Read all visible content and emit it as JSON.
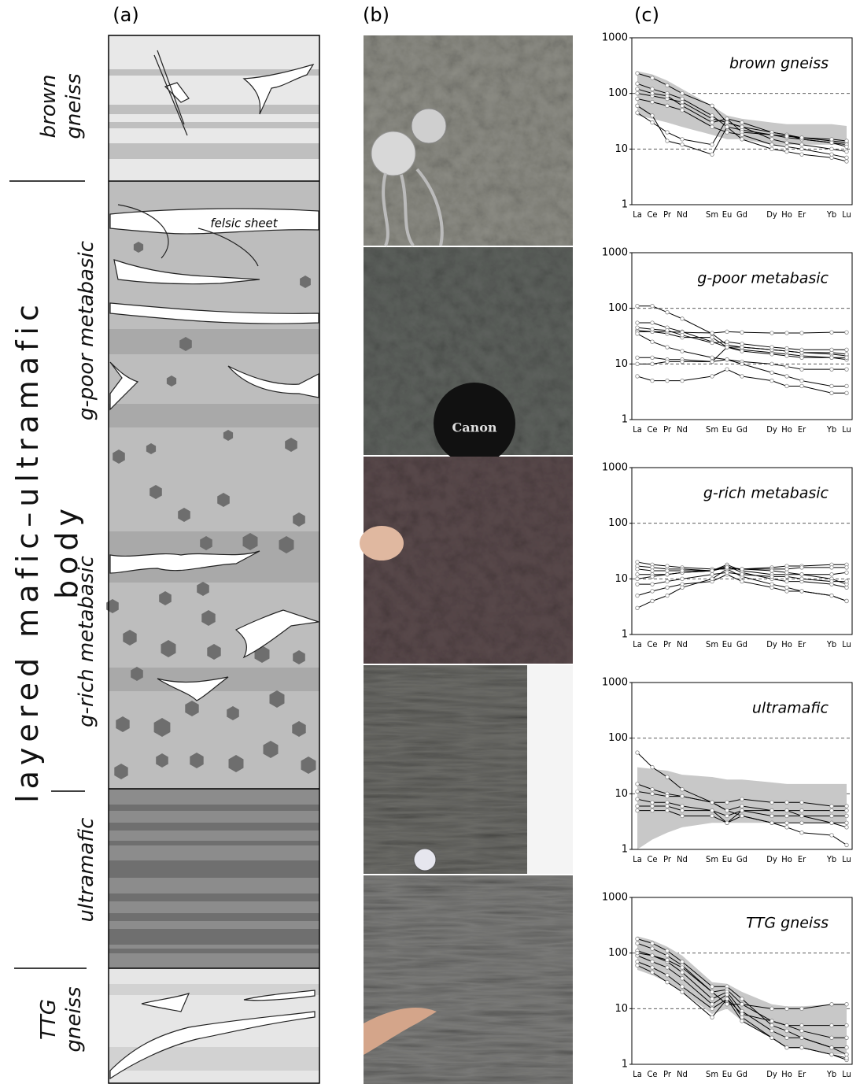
{
  "panel_labels": [
    "(a)",
    "(b)",
    "(c)"
  ],
  "column_a": {
    "body_label": "layered mafic–ultramafic body",
    "units": [
      "brown gneiss",
      "g-poor metabasic",
      "g-rich metabasic",
      "ultramafic",
      "TTG gneiss"
    ],
    "annotation": "felsic sheet"
  },
  "column_b": {
    "photo_text": "Canon"
  },
  "chart_data": [
    {
      "type": "line",
      "title": "brown gneiss",
      "log_y": true,
      "grid": true,
      "categories": [
        "La",
        "Ce",
        "Pr",
        "Nd",
        "Sm",
        "Eu",
        "Gd",
        "Dy",
        "Ho",
        "Er",
        "Yb",
        "Lu"
      ],
      "ylim": [
        1,
        1000
      ],
      "yticks": [
        1,
        10,
        100,
        1000
      ],
      "band": {
        "color": "#c8c8c8",
        "lower": [
          40,
          35,
          30,
          25,
          18,
          15,
          15,
          12,
          12,
          12,
          12,
          12
        ],
        "upper": [
          250,
          220,
          170,
          120,
          60,
          40,
          35,
          30,
          28,
          28,
          28,
          26
        ]
      },
      "series": [
        {
          "color": "#000000",
          "values": [
            230,
            190,
            140,
            100,
            60,
            30,
            25,
            20,
            18,
            16,
            14,
            13
          ]
        },
        {
          "color": "#000000",
          "values": [
            150,
            120,
            100,
            80,
            40,
            25,
            22,
            18,
            16,
            15,
            13,
            12
          ]
        },
        {
          "color": "#000000",
          "values": [
            100,
            90,
            80,
            70,
            35,
            30,
            25,
            15,
            13,
            12,
            10,
            9
          ]
        },
        {
          "color": "#000000",
          "values": [
            120,
            100,
            90,
            60,
            30,
            35,
            30,
            20,
            18,
            15,
            13,
            11
          ]
        },
        {
          "color": "#000000",
          "values": [
            45,
            30,
            20,
            15,
            12,
            35,
            20,
            18,
            17,
            16,
            15,
            14
          ]
        },
        {
          "color": "#000000",
          "values": [
            60,
            40,
            14,
            12,
            8,
            25,
            15,
            10,
            9,
            8,
            7,
            6
          ]
        },
        {
          "color": "#000000",
          "values": [
            80,
            70,
            60,
            50,
            25,
            20,
            18,
            12,
            11,
            10,
            8,
            7
          ]
        }
      ]
    },
    {
      "type": "line",
      "title": "g-poor metabasic",
      "log_y": true,
      "grid": true,
      "categories": [
        "La",
        "Ce",
        "Pr",
        "Nd",
        "Sm",
        "Eu",
        "Gd",
        "Dy",
        "Ho",
        "Er",
        "Yb",
        "Lu"
      ],
      "ylim": [
        1,
        1000
      ],
      "yticks": [
        1,
        10,
        100,
        1000
      ],
      "series": [
        {
          "color": "#000000",
          "values": [
            110,
            110,
            85,
            65,
            35,
            22,
            20,
            18,
            17,
            16,
            15,
            14
          ]
        },
        {
          "color": "#000000",
          "values": [
            55,
            55,
            45,
            38,
            25,
            20,
            18,
            16,
            15,
            14,
            13,
            12
          ]
        },
        {
          "color": "#000000",
          "values": [
            40,
            38,
            35,
            30,
            30,
            20,
            20,
            18,
            17,
            16,
            16,
            15
          ]
        },
        {
          "color": "#000000",
          "values": [
            38,
            38,
            38,
            37,
            36,
            38,
            37,
            36,
            36,
            36,
            37,
            37
          ]
        },
        {
          "color": "#000000",
          "values": [
            13,
            13,
            12,
            12,
            11,
            12,
            11,
            10,
            9,
            8,
            8,
            8
          ]
        },
        {
          "color": "#000000",
          "values": [
            6,
            5,
            5,
            5,
            6,
            8,
            6,
            5,
            4,
            4,
            3,
            3
          ]
        },
        {
          "color": "#000000",
          "values": [
            10,
            10,
            11,
            11,
            11,
            20,
            17,
            15,
            14,
            13,
            13,
            13
          ]
        },
        {
          "color": "#000000",
          "values": [
            35,
            25,
            20,
            17,
            13,
            12,
            10,
            7,
            6,
            5,
            4,
            4
          ]
        },
        {
          "color": "#000000",
          "values": [
            45,
            42,
            40,
            33,
            24,
            25,
            23,
            20,
            19,
            18,
            18,
            18
          ]
        }
      ]
    },
    {
      "type": "line",
      "title": "g-rich metabasic",
      "log_y": true,
      "grid": true,
      "categories": [
        "La",
        "Ce",
        "Pr",
        "Nd",
        "Sm",
        "Eu",
        "Gd",
        "Dy",
        "Ho",
        "Er",
        "Yb",
        "Lu"
      ],
      "ylim": [
        1,
        1000
      ],
      "yticks": [
        1,
        10,
        100,
        1000
      ],
      "series": [
        {
          "color": "#000000",
          "values": [
            20,
            18,
            17,
            16,
            15,
            15,
            15,
            16,
            17,
            17,
            18,
            18
          ]
        },
        {
          "color": "#000000",
          "values": [
            17,
            16,
            15,
            15,
            14,
            16,
            15,
            15,
            15,
            16,
            16,
            16
          ]
        },
        {
          "color": "#000000",
          "values": [
            12,
            12,
            12,
            13,
            14,
            18,
            14,
            12,
            12,
            12,
            12,
            13
          ]
        },
        {
          "color": "#000000",
          "values": [
            10,
            11,
            12,
            13,
            14,
            17,
            13,
            10,
            9,
            9,
            8,
            7
          ]
        },
        {
          "color": "#000000",
          "values": [
            5,
            6,
            7,
            8,
            9,
            12,
            9,
            7,
            6,
            6,
            5,
            4
          ]
        },
        {
          "color": "#000000",
          "values": [
            3,
            4,
            5,
            7,
            10,
            15,
            11,
            8,
            7,
            6,
            5,
            4
          ]
        },
        {
          "color": "#000000",
          "values": [
            15,
            14,
            14,
            14,
            14,
            16,
            15,
            14,
            13,
            12,
            10,
            8
          ]
        },
        {
          "color": "#000000",
          "values": [
            8,
            8,
            9,
            10,
            12,
            13,
            12,
            11,
            11,
            10,
            9,
            9
          ]
        }
      ]
    },
    {
      "type": "line",
      "title": "ultramafic",
      "log_y": true,
      "grid": true,
      "categories": [
        "La",
        "Ce",
        "Pr",
        "Nd",
        "Sm",
        "Eu",
        "Gd",
        "Dy",
        "Ho",
        "Er",
        "Yb",
        "Lu"
      ],
      "ylim": [
        1,
        1000
      ],
      "yticks": [
        1,
        10,
        100,
        1000
      ],
      "band": {
        "color": "#c8c8c8",
        "lower": [
          1,
          1.5,
          2,
          2.5,
          3,
          3,
          3,
          3,
          3,
          3,
          3,
          3
        ],
        "upper": [
          30,
          28,
          26,
          22,
          20,
          18,
          18,
          16,
          15,
          15,
          15,
          15
        ]
      },
      "series": [
        {
          "color": "#000000",
          "values": [
            55,
            30,
            20,
            12,
            7,
            5,
            4,
            3,
            2.5,
            2,
            1.8,
            1.2
          ]
        },
        {
          "color": "#000000",
          "values": [
            15,
            12,
            10,
            9,
            7,
            5,
            6,
            5,
            5,
            5,
            5,
            5
          ]
        },
        {
          "color": "#000000",
          "values": [
            8,
            7,
            7,
            6,
            5,
            4,
            5,
            5,
            5,
            4,
            4,
            4
          ]
        },
        {
          "color": "#000000",
          "values": [
            6,
            6,
            6,
            5,
            5,
            3,
            5,
            4,
            4,
            4,
            3,
            3
          ]
        },
        {
          "color": "#000000",
          "values": [
            11,
            10,
            9,
            9,
            7,
            7,
            8,
            7,
            7,
            7,
            6,
            6
          ]
        },
        {
          "color": "#000000",
          "values": [
            5,
            5,
            5,
            4,
            4,
            3,
            4,
            3,
            3,
            3,
            3,
            2.5
          ]
        }
      ]
    },
    {
      "type": "line",
      "title": "TTG gneiss",
      "log_y": true,
      "grid": true,
      "categories": [
        "La",
        "Ce",
        "Pr",
        "Nd",
        "Sm",
        "Eu",
        "Gd",
        "Dy",
        "Ho",
        "Er",
        "Yb",
        "Lu"
      ],
      "ylim": [
        1,
        1000
      ],
      "yticks": [
        1,
        10,
        100,
        1000
      ],
      "band": {
        "color": "#c8c8c8",
        "lower": [
          50,
          40,
          30,
          20,
          8,
          10,
          6,
          3,
          2,
          2,
          1.5,
          1.5
        ],
        "upper": [
          200,
          170,
          130,
          90,
          30,
          28,
          20,
          12,
          11,
          11,
          12,
          12
        ]
      },
      "series": [
        {
          "color": "#000000",
          "values": [
            180,
            150,
            110,
            70,
            25,
            25,
            15,
            5,
            4,
            3,
            2,
            2
          ]
        },
        {
          "color": "#000000",
          "values": [
            150,
            120,
            90,
            60,
            20,
            22,
            12,
            6,
            5,
            4,
            3,
            3
          ]
        },
        {
          "color": "#000000",
          "values": [
            110,
            90,
            70,
            45,
            15,
            20,
            9,
            4,
            3,
            3,
            2,
            1.5
          ]
        },
        {
          "color": "#000000",
          "values": [
            90,
            70,
            55,
            35,
            12,
            18,
            7,
            3,
            2,
            2,
            1.5,
            1.2
          ]
        },
        {
          "color": "#000000",
          "values": [
            70,
            55,
            40,
            25,
            10,
            15,
            8,
            6,
            5,
            5,
            5,
            5
          ]
        },
        {
          "color": "#000000",
          "values": [
            60,
            45,
            30,
            20,
            7,
            15,
            6,
            3,
            2,
            2,
            1.5,
            1.3
          ]
        },
        {
          "color": "#000000",
          "values": [
            100,
            90,
            75,
            55,
            20,
            12,
            12,
            10,
            10,
            10,
            12,
            12
          ]
        }
      ]
    }
  ]
}
